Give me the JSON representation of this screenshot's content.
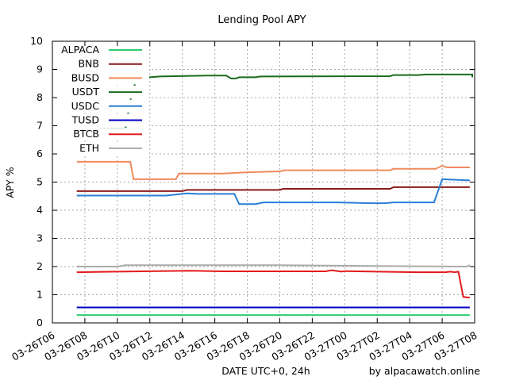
{
  "chart_data": {
    "type": "line",
    "title": "Lending Pool APY",
    "ylabel": "APY %",
    "xlabel": "DATE UTC+0, 24h",
    "credit": "by alpacawatch.online",
    "grid": true,
    "legend_placement": "top-left",
    "ylim": [
      0,
      10
    ],
    "y_ticks": [
      "0",
      "1",
      "2",
      "3",
      "4",
      "5",
      "6",
      "7",
      "8",
      "9",
      "10"
    ],
    "x_range_hours": [
      0,
      26
    ],
    "x_ticks": [
      "03-26T06",
      "03-26T08",
      "03-26T10",
      "03-26T12",
      "03-26T14",
      "03-26T16",
      "03-26T18",
      "03-26T20",
      "03-26T22",
      "03-27T00",
      "03-27T02",
      "03-27T04",
      "03-27T06",
      "03-27T08"
    ],
    "series": [
      {
        "name": "ALPACA",
        "color": "#2ecc71",
        "points": [
          [
            1.5,
            0.28
          ],
          [
            25.7,
            0.28
          ]
        ]
      },
      {
        "name": "BNB",
        "color": "#8b1a1a",
        "points": [
          [
            1.5,
            4.68
          ],
          [
            8.0,
            4.68
          ],
          [
            8.3,
            4.72
          ],
          [
            14.0,
            4.72
          ],
          [
            14.2,
            4.76
          ],
          [
            20.8,
            4.76
          ],
          [
            21.0,
            4.82
          ],
          [
            25.7,
            4.82
          ]
        ]
      },
      {
        "name": "BUSD",
        "color": "#f08a5d",
        "points": [
          [
            1.5,
            5.72
          ],
          [
            4.8,
            5.72
          ],
          [
            5.0,
            5.1
          ],
          [
            7.6,
            5.1
          ],
          [
            7.8,
            5.3
          ],
          [
            9.5,
            5.3
          ],
          [
            10.5,
            5.3
          ],
          [
            12.0,
            5.35
          ],
          [
            14.0,
            5.38
          ],
          [
            14.3,
            5.42
          ],
          [
            20.8,
            5.42
          ],
          [
            21.0,
            5.47
          ],
          [
            23.6,
            5.47
          ],
          [
            24.0,
            5.58
          ],
          [
            24.3,
            5.52
          ],
          [
            25.7,
            5.52
          ]
        ]
      },
      {
        "name": "USDT",
        "color": "#1a6b1a",
        "points": [
          [
            1.5,
            6.88
          ],
          [
            3.5,
            6.9
          ],
          [
            4.5,
            6.9
          ],
          [
            4.8,
            7.9
          ],
          [
            5.2,
            8.72
          ],
          [
            6.0,
            8.72
          ],
          [
            6.6,
            8.75
          ],
          [
            9.5,
            8.78
          ],
          [
            10.7,
            8.78
          ],
          [
            11.0,
            8.68
          ],
          [
            11.3,
            8.68
          ],
          [
            11.5,
            8.72
          ],
          [
            12.5,
            8.72
          ],
          [
            12.8,
            8.75
          ],
          [
            20.8,
            8.76
          ],
          [
            21.0,
            8.8
          ],
          [
            22.5,
            8.8
          ],
          [
            23.0,
            8.82
          ],
          [
            26.8,
            8.82
          ],
          [
            27.0,
            8.77
          ],
          [
            28.3,
            8.72
          ],
          [
            29.3,
            8.72
          ]
        ]
      },
      {
        "name": "USDC",
        "color": "#2a7fd5",
        "points": [
          [
            1.5,
            4.52
          ],
          [
            7.0,
            4.52
          ],
          [
            8.3,
            4.6
          ],
          [
            9.0,
            4.58
          ],
          [
            11.2,
            4.58
          ],
          [
            11.5,
            4.22
          ],
          [
            12.5,
            4.22
          ],
          [
            13.0,
            4.28
          ],
          [
            17.5,
            4.28
          ],
          [
            19.7,
            4.25
          ],
          [
            20.5,
            4.25
          ],
          [
            21.0,
            4.28
          ],
          [
            23.5,
            4.28
          ],
          [
            24.0,
            5.1
          ],
          [
            25.7,
            5.06
          ]
        ]
      },
      {
        "name": "TUSD",
        "color": "#0000c0",
        "points": [
          [
            1.5,
            0.55
          ],
          [
            25.7,
            0.55
          ]
        ]
      },
      {
        "name": "BTCB",
        "color": "#e31a1c",
        "points": [
          [
            1.5,
            1.8
          ],
          [
            4.0,
            1.82
          ],
          [
            8.5,
            1.85
          ],
          [
            10.5,
            1.83
          ],
          [
            16.8,
            1.83
          ],
          [
            17.2,
            1.87
          ],
          [
            17.8,
            1.82
          ],
          [
            18.0,
            1.84
          ],
          [
            22.5,
            1.8
          ],
          [
            24.2,
            1.8
          ],
          [
            24.5,
            1.82
          ],
          [
            24.8,
            1.8
          ],
          [
            25.0,
            1.82
          ],
          [
            25.3,
            0.92
          ],
          [
            25.7,
            0.9
          ]
        ]
      },
      {
        "name": "ETH",
        "color": "#aaaaaa",
        "points": [
          [
            1.5,
            2.0
          ],
          [
            4.0,
            2.0
          ],
          [
            4.5,
            2.05
          ],
          [
            14.0,
            2.05
          ],
          [
            20.0,
            2.02
          ],
          [
            25.5,
            2.0
          ],
          [
            25.7,
            2.05
          ]
        ]
      }
    ]
  }
}
